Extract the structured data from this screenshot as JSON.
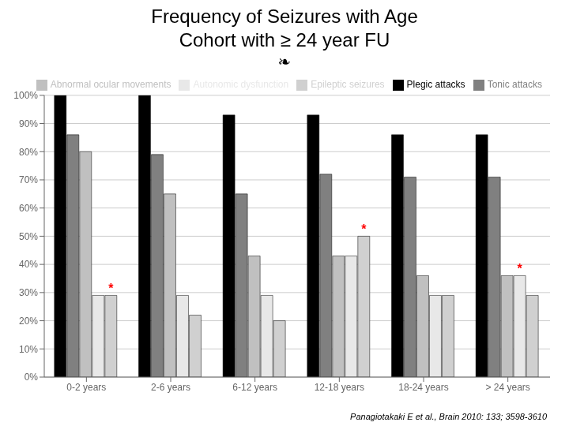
{
  "chart_data": {
    "type": "bar",
    "title": "Frequency of Seizures with Age",
    "subtitle": "Cohort with ≥ 24 year FU",
    "categories": [
      "0-2 years",
      "2-6 years",
      "6-12 years",
      "12-18 years",
      "18-24 years",
      "> 24 years"
    ],
    "series": [
      {
        "name": "Plegic attacks",
        "color": "#000000",
        "values": [
          100,
          100,
          93,
          93,
          86,
          86
        ]
      },
      {
        "name": "Tonic attacks",
        "color": "#808080",
        "values": [
          86,
          79,
          65,
          72,
          71,
          71
        ]
      },
      {
        "name": "Abnormal ocular movements",
        "color": "#C0C0C0",
        "values": [
          80,
          65,
          43,
          43,
          36,
          36
        ]
      },
      {
        "name": "Autonomic dysfunction",
        "color": "#E8E8E8",
        "values": [
          29,
          29,
          29,
          43,
          29,
          36
        ]
      },
      {
        "name": "Epileptic seizures",
        "color": "#D0D0D0",
        "values": [
          29,
          22,
          20,
          50,
          29,
          29
        ]
      }
    ],
    "ylim": [
      0,
      100
    ],
    "yticks": [
      {
        "value": 0,
        "label": "0%"
      },
      {
        "value": 10,
        "label": "10%"
      },
      {
        "value": 20,
        "label": "20%"
      },
      {
        "value": 30,
        "label": "30%"
      },
      {
        "value": 40,
        "label": "40%"
      },
      {
        "value": 50,
        "label": "50%"
      },
      {
        "value": 60,
        "label": "60%"
      },
      {
        "value": 70,
        "label": "70%"
      },
      {
        "value": 80,
        "label": "80%"
      },
      {
        "value": 90,
        "label": "90%"
      },
      {
        "value": 100,
        "label": "100%"
      }
    ],
    "grid": true,
    "legend": "upper right",
    "annotations": [
      {
        "text": "❧"
      },
      {
        "text": "*",
        "category": "0-2 years",
        "series": "Epileptic seizures",
        "color": "red"
      },
      {
        "text": "*",
        "category": "12-18 years",
        "series": "Epileptic seizures",
        "color": "red"
      },
      {
        "text": "*",
        "category": "> 24 years",
        "series": "Autonomic dysfunction",
        "color": "red"
      },
      {
        "text": "Panagiotakaki E et al., Brain 2010: 133; 3598-3610"
      }
    ]
  }
}
